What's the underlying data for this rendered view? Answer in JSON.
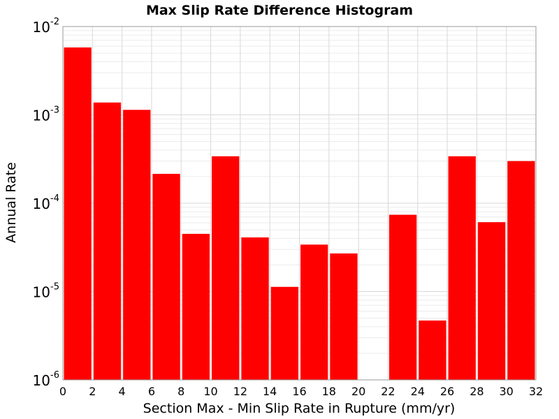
{
  "chart_data": {
    "type": "bar",
    "title": "Max Slip Rate Difference Histogram",
    "xlabel": "Section Max - Min Slip Rate in Rupture (mm/yr)",
    "ylabel": "Annual Rate",
    "xlim": [
      0,
      32
    ],
    "ylim": [
      1e-06,
      0.01
    ],
    "yscale": "log",
    "bar_width": 2,
    "bar_color": "#ff0000",
    "x_ticks": [
      "0",
      "2",
      "4",
      "6",
      "8",
      "10",
      "12",
      "14",
      "16",
      "18",
      "20",
      "22",
      "24",
      "26",
      "28",
      "30",
      "32"
    ],
    "y_ticks": [
      {
        "base": "10",
        "exp": "-6",
        "value": 1e-06
      },
      {
        "base": "10",
        "exp": "-5",
        "value": 1e-05
      },
      {
        "base": "10",
        "exp": "-4",
        "value": 0.0001
      },
      {
        "base": "10",
        "exp": "-3",
        "value": 0.001
      },
      {
        "base": "10",
        "exp": "-2",
        "value": 0.01
      }
    ],
    "bins": [
      {
        "x": 0,
        "value": 0.0058
      },
      {
        "x": 2,
        "value": 0.00138
      },
      {
        "x": 4,
        "value": 0.00114
      },
      {
        "x": 6,
        "value": 0.000215
      },
      {
        "x": 8,
        "value": 4.5e-05
      },
      {
        "x": 10,
        "value": 0.00034
      },
      {
        "x": 12,
        "value": 4.1e-05
      },
      {
        "x": 14,
        "value": 1.13e-05
      },
      {
        "x": 16,
        "value": 3.4e-05
      },
      {
        "x": 18,
        "value": 2.7e-05
      },
      {
        "x": 20,
        "value": null
      },
      {
        "x": 22,
        "value": 7.4e-05
      },
      {
        "x": 24,
        "value": 4.7e-06
      },
      {
        "x": 26,
        "value": 0.00034
      },
      {
        "x": 28,
        "value": 6.1e-05
      },
      {
        "x": 30,
        "value": 0.0003
      }
    ],
    "grid": true,
    "legend": "none"
  }
}
